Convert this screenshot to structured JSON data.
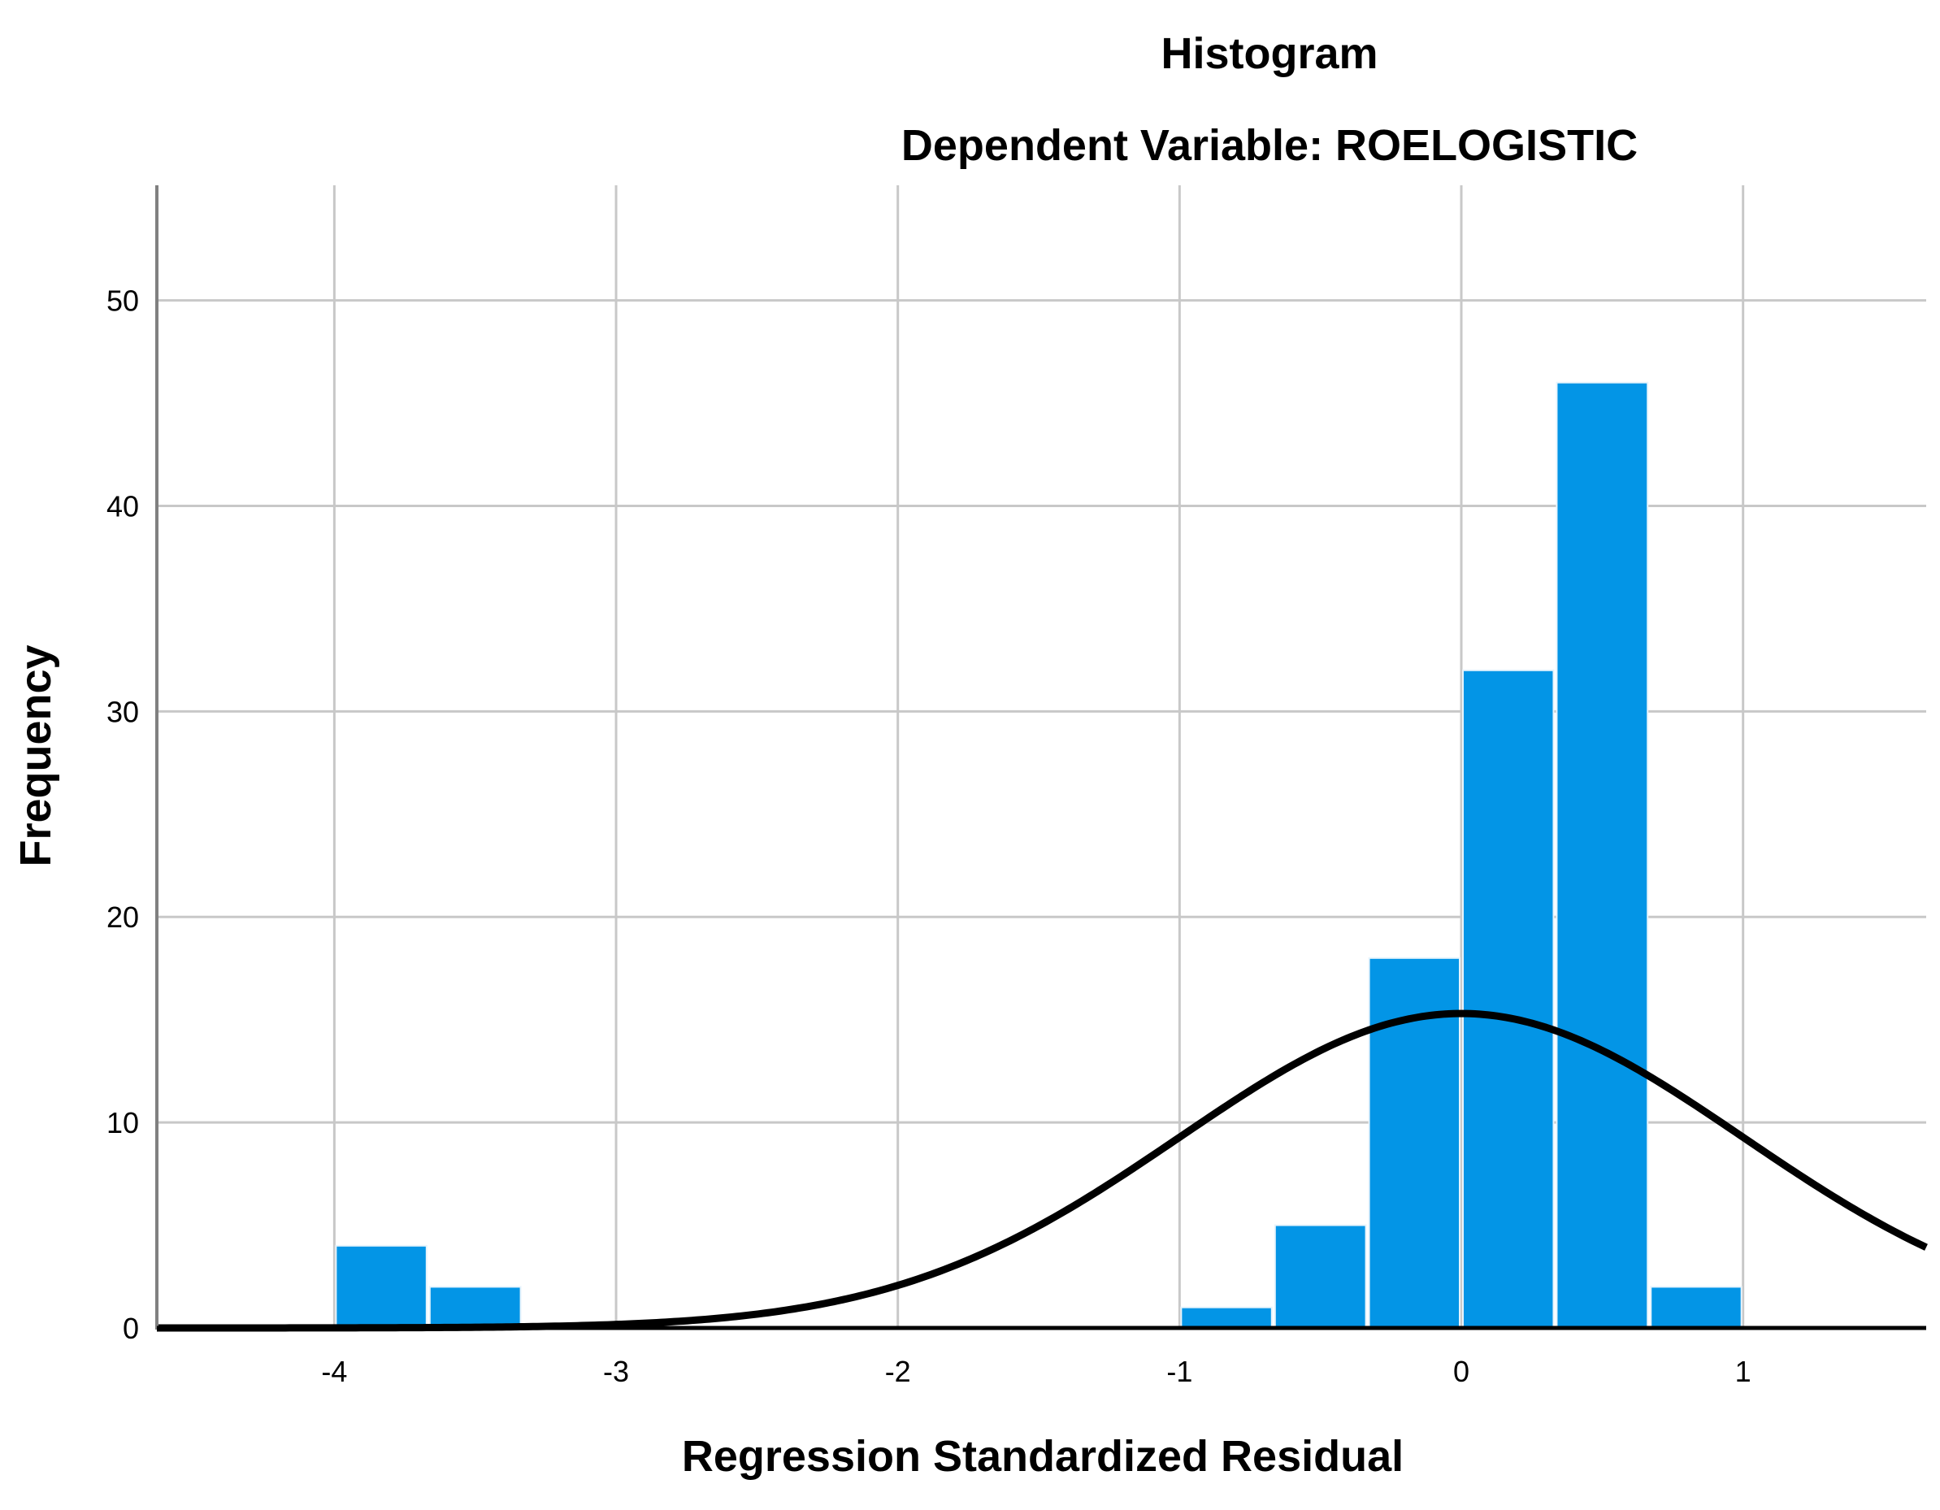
{
  "chart_data": {
    "type": "bar",
    "title": "Histogram",
    "subtitle": "Dependent Variable: ROELOGISTIC",
    "xlabel": "Regression Standardized Residual",
    "ylabel": "Frequency",
    "xlim": [
      -4.63,
      1.65
    ],
    "ylim": [
      0,
      55.6
    ],
    "x_ticks": [
      -4,
      -3,
      -2,
      -1,
      0,
      1
    ],
    "x_tick_labels": [
      "-4",
      "-3",
      "-2",
      "-1",
      "0",
      "1"
    ],
    "y_ticks": [
      0,
      10,
      20,
      30,
      40,
      50
    ],
    "y_tick_labels": [
      "0",
      "10",
      "20",
      "30",
      "40",
      "50"
    ],
    "grid": true,
    "bins": [
      {
        "x0": -4.0,
        "x1": -3.667,
        "count": 4
      },
      {
        "x0": -3.667,
        "x1": -3.333,
        "count": 2
      },
      {
        "x0": -1.0,
        "x1": -0.667,
        "count": 1
      },
      {
        "x0": -0.667,
        "x1": -0.333,
        "count": 5
      },
      {
        "x0": -0.333,
        "x1": 0.0,
        "count": 18
      },
      {
        "x0": 0.0,
        "x1": 0.333,
        "count": 32
      },
      {
        "x0": 0.333,
        "x1": 0.667,
        "count": 46
      },
      {
        "x0": 0.667,
        "x1": 1.0,
        "count": 2
      }
    ],
    "normal_curve": {
      "mean": 0.0,
      "peak": 15.3,
      "sd": 1.0
    },
    "colors": {
      "bar": "#0395e6",
      "bar_edge": "#e8f4fc",
      "curve": "#000000",
      "grid": "#c8c8c8",
      "axis": "#808080"
    }
  }
}
